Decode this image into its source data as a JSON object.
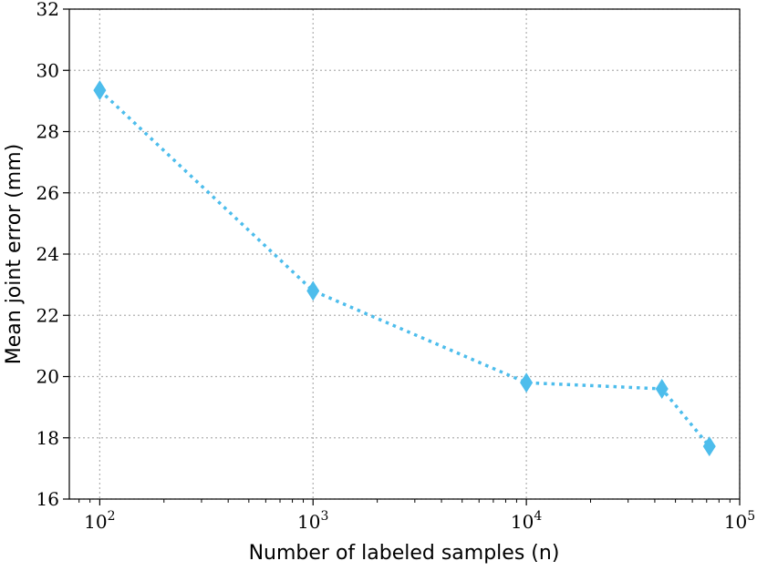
{
  "chart_data": {
    "type": "line",
    "title": "",
    "xlabel": "Number of labeled samples (n)",
    "ylabel": "Mean joint error (mm)",
    "xscale": "log",
    "xlim": [
      72,
      100000
    ],
    "ylim": [
      16,
      32
    ],
    "grid": true,
    "x_ticks": [
      {
        "value": 100,
        "base": "10",
        "exp": "2"
      },
      {
        "value": 1000,
        "base": "10",
        "exp": "3"
      },
      {
        "value": 10000,
        "base": "10",
        "exp": "4"
      },
      {
        "value": 100000,
        "base": "10",
        "exp": "5"
      }
    ],
    "y_ticks": [
      "16",
      "18",
      "20",
      "22",
      "24",
      "26",
      "28",
      "30",
      "32"
    ],
    "series": [
      {
        "name": "Mean joint error",
        "color": "#4dbdec",
        "marker": "diamond",
        "linestyle": "dotted",
        "x": [
          100,
          1000,
          10000,
          43200,
          72100
        ],
        "y": [
          29.35,
          22.8,
          19.8,
          19.6,
          17.72
        ]
      }
    ]
  }
}
